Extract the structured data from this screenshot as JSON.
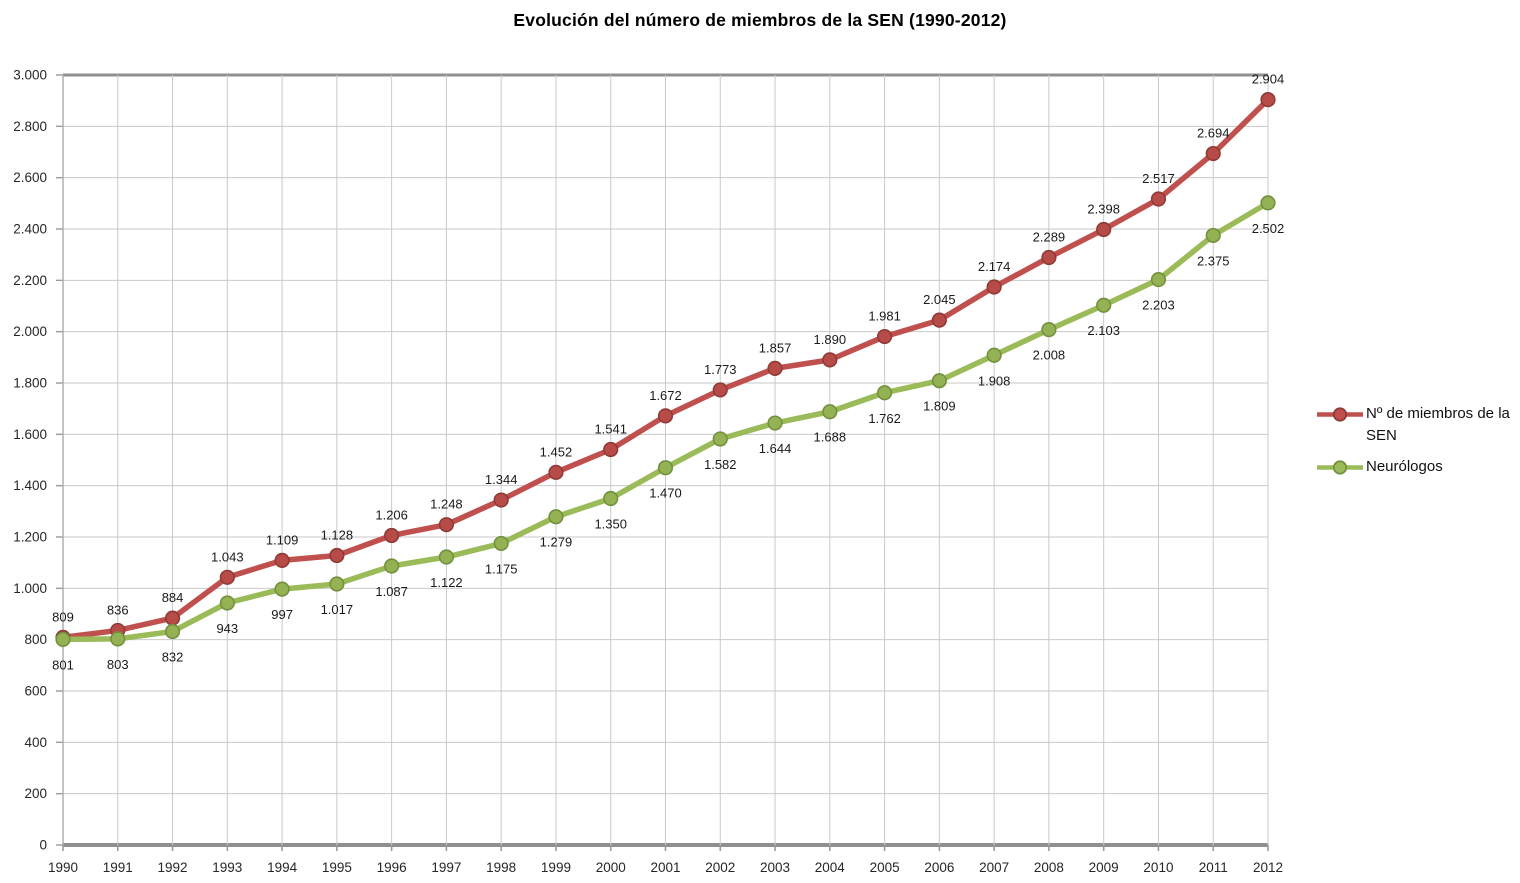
{
  "title": "Evolución del número de miembros de la SEN (1990-2012)",
  "legend": {
    "items": [
      {
        "label": "Nº de miembros de la SEN",
        "color": "#C0504D",
        "marker_stroke": "#8E3B38"
      },
      {
        "label": "Neurólogos",
        "color": "#9BBB59",
        "marker_stroke": "#74903F"
      }
    ]
  },
  "chart_data": {
    "type": "line",
    "title": "Evolución del número de miembros de la SEN (1990-2012)",
    "x": [
      1990,
      1991,
      1992,
      1993,
      1994,
      1995,
      1996,
      1997,
      1998,
      1999,
      2000,
      2001,
      2002,
      2003,
      2004,
      2005,
      2006,
      2007,
      2008,
      2009,
      2010,
      2011,
      2012
    ],
    "xtick_labels": [
      "1990",
      "1991",
      "1992",
      "1993",
      "1994",
      "1995",
      "1996",
      "1997",
      "1998",
      "1999",
      "2000",
      "2001",
      "2002",
      "2003",
      "2004",
      "2005",
      "2006",
      "2007",
      "2008",
      "2009",
      "2010",
      "2011",
      "2012"
    ],
    "series": [
      {
        "name": "Nº de miembros de la SEN",
        "color": "#C0504D",
        "marker_fill": "#B74B47",
        "marker_stroke": "#8E3B38",
        "label_position": "above",
        "values": [
          809,
          836,
          884,
          1043,
          1109,
          1128,
          1206,
          1248,
          1344,
          1452,
          1541,
          1672,
          1773,
          1857,
          1890,
          1981,
          2045,
          2174,
          2289,
          2398,
          2517,
          2694,
          2904
        ],
        "labels": [
          "809",
          "836",
          "884",
          "1.043",
          "1.109",
          "1.128",
          "1.206",
          "1.248",
          "1.344",
          "1.452",
          "1.541",
          "1.672",
          "1.773",
          "1.857",
          "1.890",
          "1.981",
          "2.045",
          "2.174",
          "2.289",
          "2.398",
          "2.517",
          "2.694",
          "2.904"
        ]
      },
      {
        "name": "Neurólogos",
        "color": "#9BBB59",
        "marker_fill": "#94B254",
        "marker_stroke": "#74903F",
        "label_position": "below",
        "values": [
          801,
          803,
          832,
          943,
          997,
          1017,
          1087,
          1122,
          1175,
          1279,
          1350,
          1470,
          1582,
          1644,
          1688,
          1762,
          1809,
          1908,
          2008,
          2103,
          2203,
          2375,
          2502
        ],
        "labels": [
          "801",
          "803",
          "832",
          "943",
          "997",
          "1.017",
          "1.087",
          "1.122",
          "1.175",
          "1.279",
          "1.350",
          "1.470",
          "1.582",
          "1.644",
          "1.688",
          "1.762",
          "1.809",
          "1.908",
          "2.008",
          "2.103",
          "2.203",
          "2.375",
          "2.502"
        ]
      }
    ],
    "ylim": [
      0,
      3000
    ],
    "ytick_step": 200,
    "ytick_labels": [
      "0",
      "200",
      "400",
      "600",
      "800",
      "1.000",
      "1.200",
      "1.400",
      "1.600",
      "1.800",
      "2.000",
      "2.200",
      "2.400",
      "2.600",
      "2.800",
      "3.000"
    ],
    "xlabel": "",
    "ylabel": "",
    "grid": true,
    "legend_position": "right",
    "colors": {
      "gridline": "#C9C9C9",
      "axis_heavy": "#8F8F8F",
      "axis_light": "#ABABAB",
      "tick": "#9A9A9A",
      "text": "#262626"
    }
  }
}
